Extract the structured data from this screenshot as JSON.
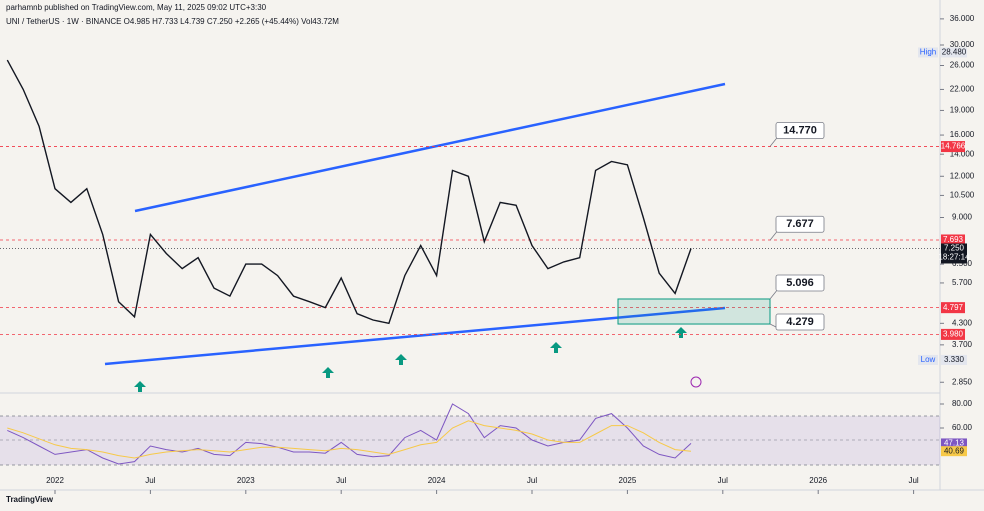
{
  "publisher": "parhamnb published on TradingView.com, May 11, 2025 09:02 UTC+3:30",
  "footer": "TradingView",
  "chart_data": [
    {
      "type": "line",
      "title": "UNI / TetherUS · 1W · BINANCE  O4.985  H7.733  L4.739  C7.250  +2.265 (+45.44%)  Vol43.72M",
      "log_scale": true,
      "x": [
        "2021-10",
        "2021-11",
        "2021-12",
        "2022-01",
        "2022-02",
        "2022-03",
        "2022-04",
        "2022-05",
        "2022-06",
        "2022-07",
        "2022-08",
        "2022-09",
        "2022-10",
        "2022-11",
        "2022-12",
        "2023-01",
        "2023-02",
        "2023-03",
        "2023-04",
        "2023-05",
        "2023-06",
        "2023-07",
        "2023-08",
        "2023-09",
        "2023-10",
        "2023-11",
        "2023-12",
        "2024-01",
        "2024-02",
        "2024-03",
        "2024-04",
        "2024-05",
        "2024-06",
        "2024-07",
        "2024-08",
        "2024-09",
        "2024-10",
        "2024-11",
        "2024-12",
        "2025-01",
        "2025-02",
        "2025-03",
        "2025-04",
        "2025-05"
      ],
      "series": [
        {
          "name": "UNIUSDT",
          "color": "#131722",
          "values": [
            27,
            22,
            17,
            11,
            10,
            11,
            8,
            5,
            4.5,
            8,
            7,
            6.3,
            6.8,
            5.5,
            5.2,
            6.5,
            6.5,
            6.0,
            5.2,
            5.0,
            4.8,
            5.9,
            4.6,
            4.4,
            4.3,
            6.0,
            7.4,
            6.0,
            12.5,
            12.0,
            7.6,
            10.0,
            9.8,
            7.4,
            6.3,
            6.6,
            6.8,
            12.5,
            13.3,
            13,
            9.0,
            6.1,
            5.3,
            7.25
          ]
        }
      ],
      "xlim": [
        "2021-09",
        "2026-08"
      ],
      "xticks": [
        {
          "value": "2022-01",
          "label": "2022"
        },
        {
          "value": "2022-07",
          "label": "Jul"
        },
        {
          "value": "2023-01",
          "label": "2023"
        },
        {
          "value": "2023-07",
          "label": "Jul"
        },
        {
          "value": "2024-01",
          "label": "2024"
        },
        {
          "value": "2024-07",
          "label": "Jul"
        },
        {
          "value": "2025-01",
          "label": "2025"
        },
        {
          "value": "2025-07",
          "label": "Jul"
        },
        {
          "value": "2026-01",
          "label": "2026"
        },
        {
          "value": "2026-07",
          "label": "Jul"
        }
      ],
      "ylim": [
        2.7,
        38.3
      ],
      "yticks": [
        {
          "value": 36,
          "label": "36.000"
        },
        {
          "value": 30,
          "label": "30.000"
        },
        {
          "value": 26,
          "label": "26.000"
        },
        {
          "value": 22,
          "label": "22.000"
        },
        {
          "value": 19,
          "label": "19.000"
        },
        {
          "value": 16,
          "label": "16.000"
        },
        {
          "value": 14,
          "label": "14.000"
        },
        {
          "value": 12,
          "label": "12.000"
        },
        {
          "value": 10.5,
          "label": "10.500"
        },
        {
          "value": 9,
          "label": "9.000"
        },
        {
          "value": 6.5,
          "label": "6.500"
        },
        {
          "value": 5.7,
          "label": "5.700"
        },
        {
          "value": 4.3,
          "label": "4.300"
        },
        {
          "value": 3.7,
          "label": "3.700"
        },
        {
          "value": 2.85,
          "label": "2.850"
        }
      ],
      "price_levels": [
        14.766,
        7.693,
        4.797,
        {
          "value": 3.98,
          "label": "3.980"
        }
      ],
      "level_color": "#f23645",
      "current": {
        "value": 7.25,
        "label": "7.250"
      },
      "countdown": "18:27:14",
      "high": {
        "value": 28.48,
        "label": "28.480"
      },
      "high_label": "High",
      "low": {
        "value": 3.33,
        "label": "3.330"
      },
      "low_label": "Low",
      "annotations": [
        {
          "value": 14.77,
          "label": "14.770"
        },
        {
          "value": 7.677,
          "label": "7.677"
        },
        {
          "value": 5.096,
          "label": "5.096"
        },
        {
          "value": 4.279,
          "label": "4.279"
        }
      ]
    },
    {
      "type": "line",
      "x": [
        "2021-10",
        "2021-11",
        "2021-12",
        "2022-01",
        "2022-02",
        "2022-03",
        "2022-04",
        "2022-05",
        "2022-06",
        "2022-07",
        "2022-08",
        "2022-09",
        "2022-10",
        "2022-11",
        "2022-12",
        "2023-01",
        "2023-02",
        "2023-03",
        "2023-04",
        "2023-05",
        "2023-06",
        "2023-07",
        "2023-08",
        "2023-09",
        "2023-10",
        "2023-11",
        "2023-12",
        "2024-01",
        "2024-02",
        "2024-03",
        "2024-04",
        "2024-05",
        "2024-06",
        "2024-07",
        "2024-08",
        "2024-09",
        "2024-10",
        "2024-11",
        "2024-12",
        "2025-01",
        "2025-02",
        "2025-03",
        "2025-04",
        "2025-05"
      ],
      "series": [
        {
          "name": "RSI",
          "color": "#7e57c2",
          "values": [
            58,
            52,
            45,
            38,
            40,
            42,
            35,
            30,
            32,
            45,
            42,
            40,
            43,
            38,
            37,
            48,
            47,
            44,
            40,
            40,
            39,
            48,
            38,
            36,
            37,
            52,
            58,
            50,
            80,
            72,
            52,
            62,
            60,
            50,
            45,
            48,
            50,
            68,
            72,
            60,
            45,
            38,
            35,
            47.13
          ]
        },
        {
          "name": "RSI MA",
          "color": "#f7c948",
          "values": [
            60,
            56,
            51,
            46,
            43,
            42,
            40,
            37,
            35,
            38,
            40,
            41,
            42,
            41,
            40,
            42,
            44,
            44,
            43,
            42,
            41,
            43,
            42,
            40,
            38,
            42,
            46,
            48,
            60,
            66,
            62,
            60,
            58,
            55,
            50,
            48,
            48,
            55,
            62,
            62,
            56,
            48,
            42,
            40.69
          ]
        }
      ],
      "xlim": [
        "2021-09",
        "2026-08"
      ],
      "ylim": [
        25,
        87.5
      ],
      "yticks": [
        {
          "value": 80,
          "label": "80.00"
        },
        {
          "value": 60,
          "label": "60.00"
        }
      ],
      "last_values": [
        47.13,
        40.69
      ]
    }
  ]
}
